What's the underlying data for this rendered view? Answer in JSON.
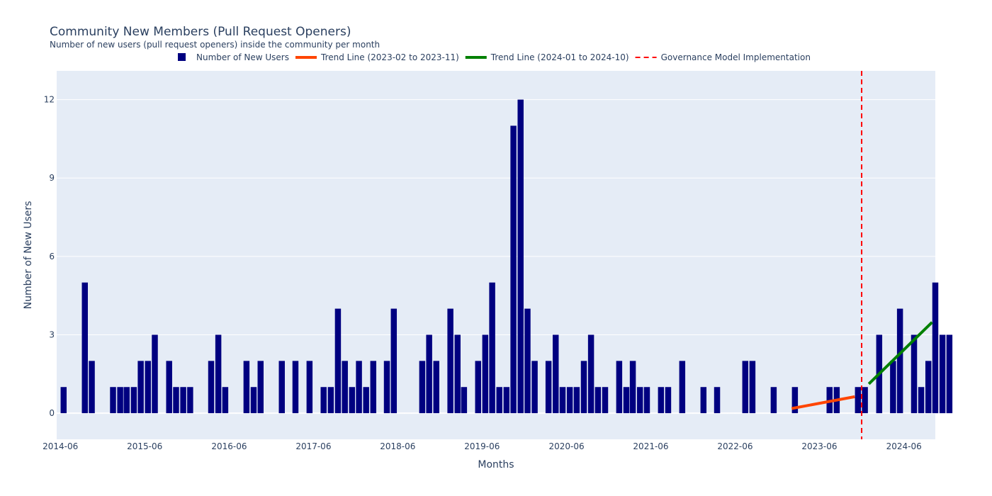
{
  "chart_data": {
    "type": "bar",
    "title": "Community New Members (Pull Request Openers)",
    "subtitle": "Number of new users (pull request openers) inside the community per month",
    "xlabel": "Months",
    "ylabel": "Number of New Users",
    "ylim": [
      -1,
      13.1
    ],
    "yticks": [
      0,
      3,
      6,
      9,
      12
    ],
    "xlim": [
      "2014-05-16",
      "2024-10-15"
    ],
    "xtick_labels": [
      "2014-06",
      "2015-06",
      "2016-06",
      "2017-06",
      "2018-06",
      "2019-06",
      "2020-06",
      "2021-06",
      "2022-06",
      "2023-06",
      "2024-06"
    ],
    "grid": true,
    "legend_position": "top",
    "series": [
      {
        "name": "Number of New Users",
        "kind": "bar",
        "color": "#000080",
        "start_month": "2014-06",
        "values": [
          1,
          0,
          0,
          5,
          2,
          0,
          0,
          1,
          1,
          1,
          1,
          2,
          2,
          3,
          0,
          2,
          1,
          1,
          1,
          0,
          0,
          2,
          3,
          1,
          0,
          0,
          2,
          1,
          2,
          0,
          0,
          2,
          0,
          2,
          0,
          2,
          0,
          1,
          1,
          4,
          2,
          1,
          2,
          1,
          2,
          0,
          2,
          4,
          0,
          0,
          0,
          2,
          3,
          2,
          0,
          4,
          3,
          1,
          0,
          2,
          3,
          5,
          1,
          1,
          11,
          12,
          4,
          2,
          0,
          2,
          3,
          1,
          1,
          1,
          2,
          3,
          1,
          1,
          0,
          2,
          1,
          2,
          1,
          1,
          0,
          1,
          1,
          0,
          2,
          0,
          0,
          1,
          0,
          1,
          0,
          0,
          0,
          2,
          2,
          0,
          0,
          1,
          0,
          0,
          1,
          0,
          0,
          0,
          0,
          1,
          1,
          0,
          0,
          1,
          1,
          0,
          3,
          0,
          2,
          4,
          0,
          3,
          1,
          2,
          5,
          3,
          3
        ]
      },
      {
        "name": "Trend Line (2023-02 to 2023-11)",
        "kind": "line",
        "color": "#ff4500",
        "x": [
          "2023-02",
          "2023-11"
        ],
        "y": [
          0.18,
          0.63
        ]
      },
      {
        "name": "Trend Line (2024-01 to 2024-10)",
        "kind": "line",
        "color": "#008000",
        "x": [
          "2024-01",
          "2024-10"
        ],
        "y": [
          1.12,
          3.48
        ]
      },
      {
        "name": "Governance Model Implementation",
        "kind": "vline",
        "color": "#ff0000",
        "x": "2023-12-01"
      }
    ]
  }
}
